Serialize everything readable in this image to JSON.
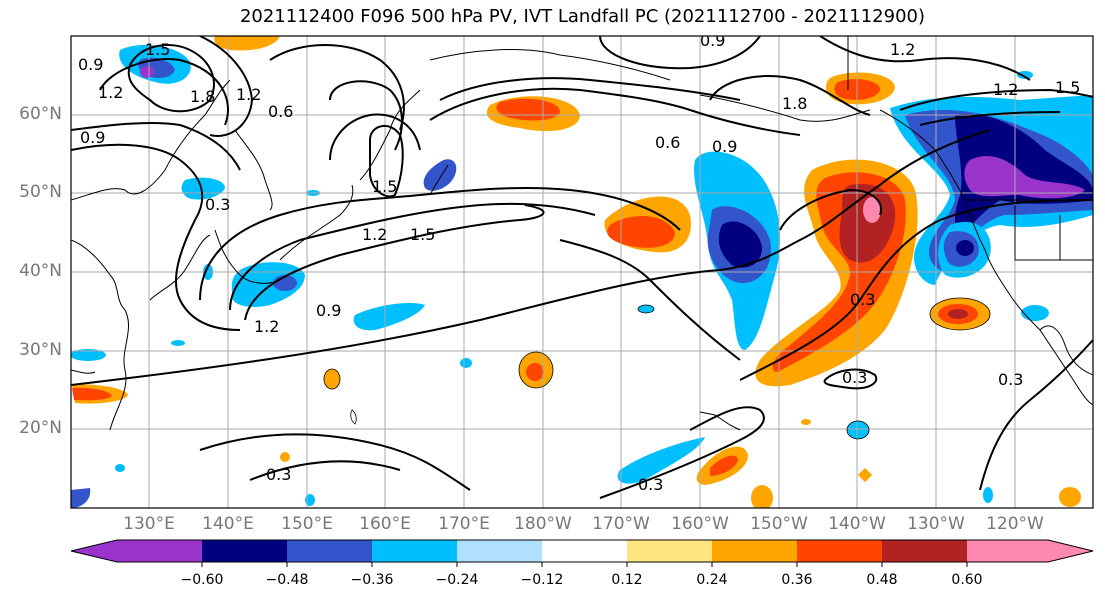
{
  "title": "2021112400 F096 500 hPa PV, IVT Landfall PC (2021112700 - 2021112900)",
  "map": {
    "lat_labels": [
      "60°N",
      "50°N",
      "40°N",
      "30°N",
      "20°N"
    ],
    "lon_labels": [
      "130°E",
      "140°E",
      "150°E",
      "160°E",
      "170°E",
      "180°W",
      "170°W",
      "160°W",
      "150°W",
      "140°W",
      "130°W",
      "120°W"
    ],
    "contour_labels": [
      "0.9",
      "1.5",
      "1.2",
      "1.8",
      "1.2",
      "0.6",
      "0.9",
      "0.9",
      "1.2",
      "1.8",
      "0.9",
      "1.5",
      "1.2",
      "0.6",
      "0.3",
      "1.5",
      "1.2",
      "1.5",
      "0.9",
      "1.2",
      "0.3",
      "0.3",
      "0.3",
      "0.3",
      "0.3"
    ]
  },
  "colorbar": {
    "ticks": [
      "−0.60",
      "−0.48",
      "−0.36",
      "−0.24",
      "−0.12",
      "0.12",
      "0.24",
      "0.36",
      "0.48",
      "0.60"
    ],
    "colors": [
      "#9933cc",
      "#000080",
      "#3355cc",
      "#00bfff",
      "#b0e0ff",
      "#ffffff",
      "#ffe680",
      "#ffa500",
      "#ff4500",
      "#b22222",
      "#ff88b0"
    ]
  }
}
